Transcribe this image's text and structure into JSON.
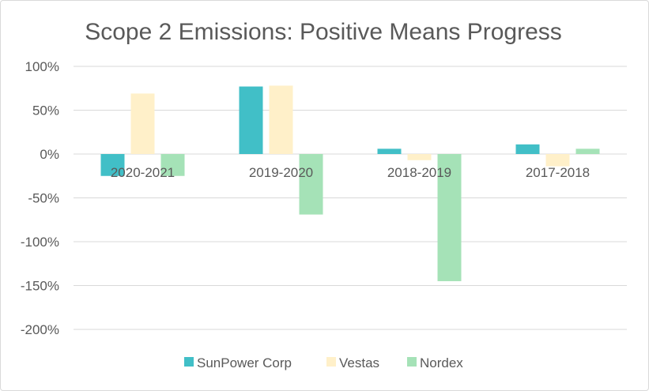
{
  "chart_data": {
    "type": "bar",
    "title": "Scope 2 Emissions: Positive Means Progress",
    "categories": [
      "2020-2021",
      "2019-2020",
      "2018-2019",
      "2017-2018"
    ],
    "series": [
      {
        "name": "SunPower Corp",
        "color": "#41bfc7",
        "values": [
          -25,
          77,
          6,
          11
        ]
      },
      {
        "name": "Vestas",
        "color": "#fff0c9",
        "values": [
          69,
          78,
          -7,
          -14
        ]
      },
      {
        "name": "Nordex",
        "color": "#a5e2b7",
        "values": [
          -25,
          -69,
          -145,
          6
        ]
      }
    ],
    "ylim": [
      -200,
      100
    ],
    "yticks": [
      100,
      50,
      0,
      -50,
      -100,
      -150,
      -200
    ],
    "ytick_labels": [
      "100%",
      "50%",
      "0%",
      "-50%",
      "-100%",
      "-150%",
      "-200%"
    ],
    "grid": true,
    "legend_position": "bottom",
    "gridline_color": "#d9d9d9"
  }
}
